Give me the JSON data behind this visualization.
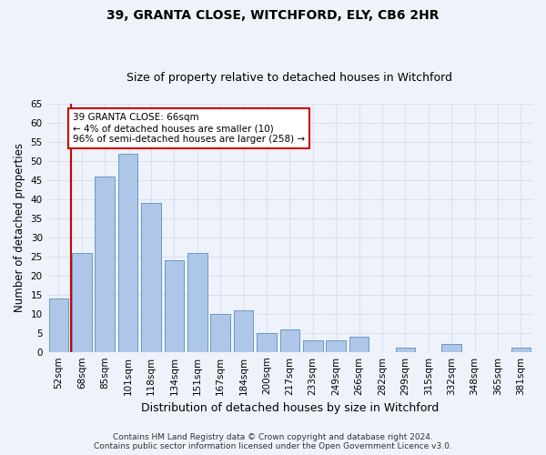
{
  "title": "39, GRANTA CLOSE, WITCHFORD, ELY, CB6 2HR",
  "subtitle": "Size of property relative to detached houses in Witchford",
  "xlabel": "Distribution of detached houses by size in Witchford",
  "ylabel": "Number of detached properties",
  "footer_line1": "Contains HM Land Registry data © Crown copyright and database right 2024.",
  "footer_line2": "Contains public sector information licensed under the Open Government Licence v3.0.",
  "categories": [
    "52sqm",
    "68sqm",
    "85sqm",
    "101sqm",
    "118sqm",
    "134sqm",
    "151sqm",
    "167sqm",
    "184sqm",
    "200sqm",
    "217sqm",
    "233sqm",
    "249sqm",
    "266sqm",
    "282sqm",
    "299sqm",
    "315sqm",
    "332sqm",
    "348sqm",
    "365sqm",
    "381sqm"
  ],
  "values": [
    14,
    26,
    46,
    52,
    39,
    24,
    26,
    10,
    11,
    5,
    6,
    3,
    3,
    4,
    0,
    1,
    0,
    2,
    0,
    0,
    1
  ],
  "bar_color": "#aec6e8",
  "bar_edge_color": "#5a8fc2",
  "annotation_text_line1": "39 GRANTA CLOSE: 66sqm",
  "annotation_text_line2": "← 4% of detached houses are smaller (10)",
  "annotation_text_line3": "96% of semi-detached houses are larger (258) →",
  "annotation_box_color": "#ffffff",
  "annotation_border_color": "#cc0000",
  "vline_color": "#cc0000",
  "vline_x": 0.545,
  "ylim": [
    0,
    65
  ],
  "yticks": [
    0,
    5,
    10,
    15,
    20,
    25,
    30,
    35,
    40,
    45,
    50,
    55,
    60,
    65
  ],
  "grid_color": "#d0d8e8",
  "background_color": "#eef2fa",
  "title_fontsize": 10,
  "subtitle_fontsize": 9,
  "xlabel_fontsize": 9,
  "ylabel_fontsize": 8.5,
  "tick_fontsize": 7.5,
  "footer_fontsize": 6.5
}
